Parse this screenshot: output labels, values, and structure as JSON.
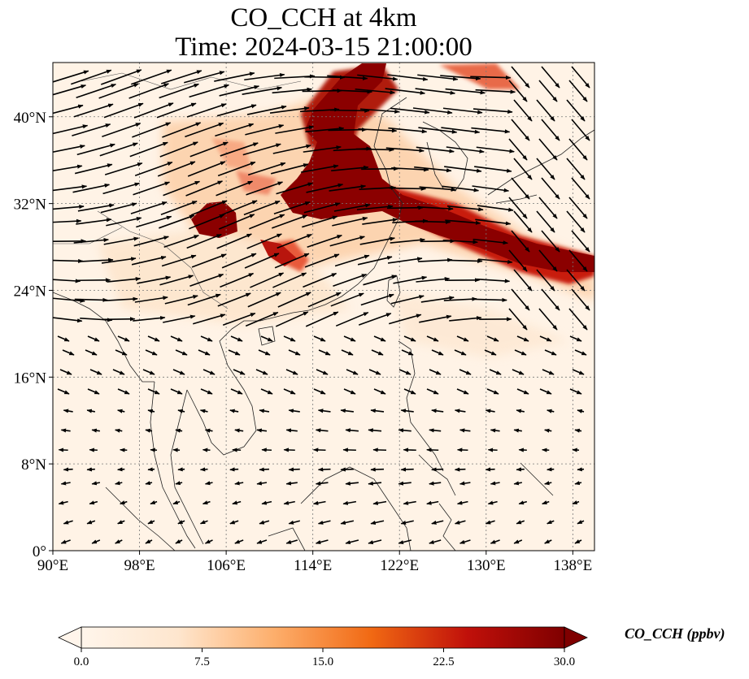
{
  "title": {
    "line1": "CO_CCH at 4km",
    "line2": "Time: 2024-03-15 21:00:00"
  },
  "map": {
    "lon_range": [
      90,
      140
    ],
    "lat_range": [
      0,
      45
    ],
    "lon_ticks": [
      "90°E",
      "98°E",
      "106°E",
      "114°E",
      "122°E",
      "130°E",
      "138°E"
    ],
    "lat_ticks": [
      "0°",
      "8°N",
      "16°N",
      "24°N",
      "32°N",
      "40°N"
    ],
    "gridlines": true,
    "field": "CO_CCH",
    "overlay": "wind vectors"
  },
  "colorbar": {
    "label": "CO_CCH (ppbv)",
    "min": 0,
    "max": 30,
    "ticks": [
      "0.0",
      "7.5",
      "15.0",
      "22.5",
      "30.0"
    ],
    "colormap": [
      "#fff5eb",
      "#fdd0a2",
      "#fd8d3c",
      "#d94801",
      "#8c2d04",
      "#7f0000"
    ],
    "extend": "both",
    "position": "bottom"
  }
}
